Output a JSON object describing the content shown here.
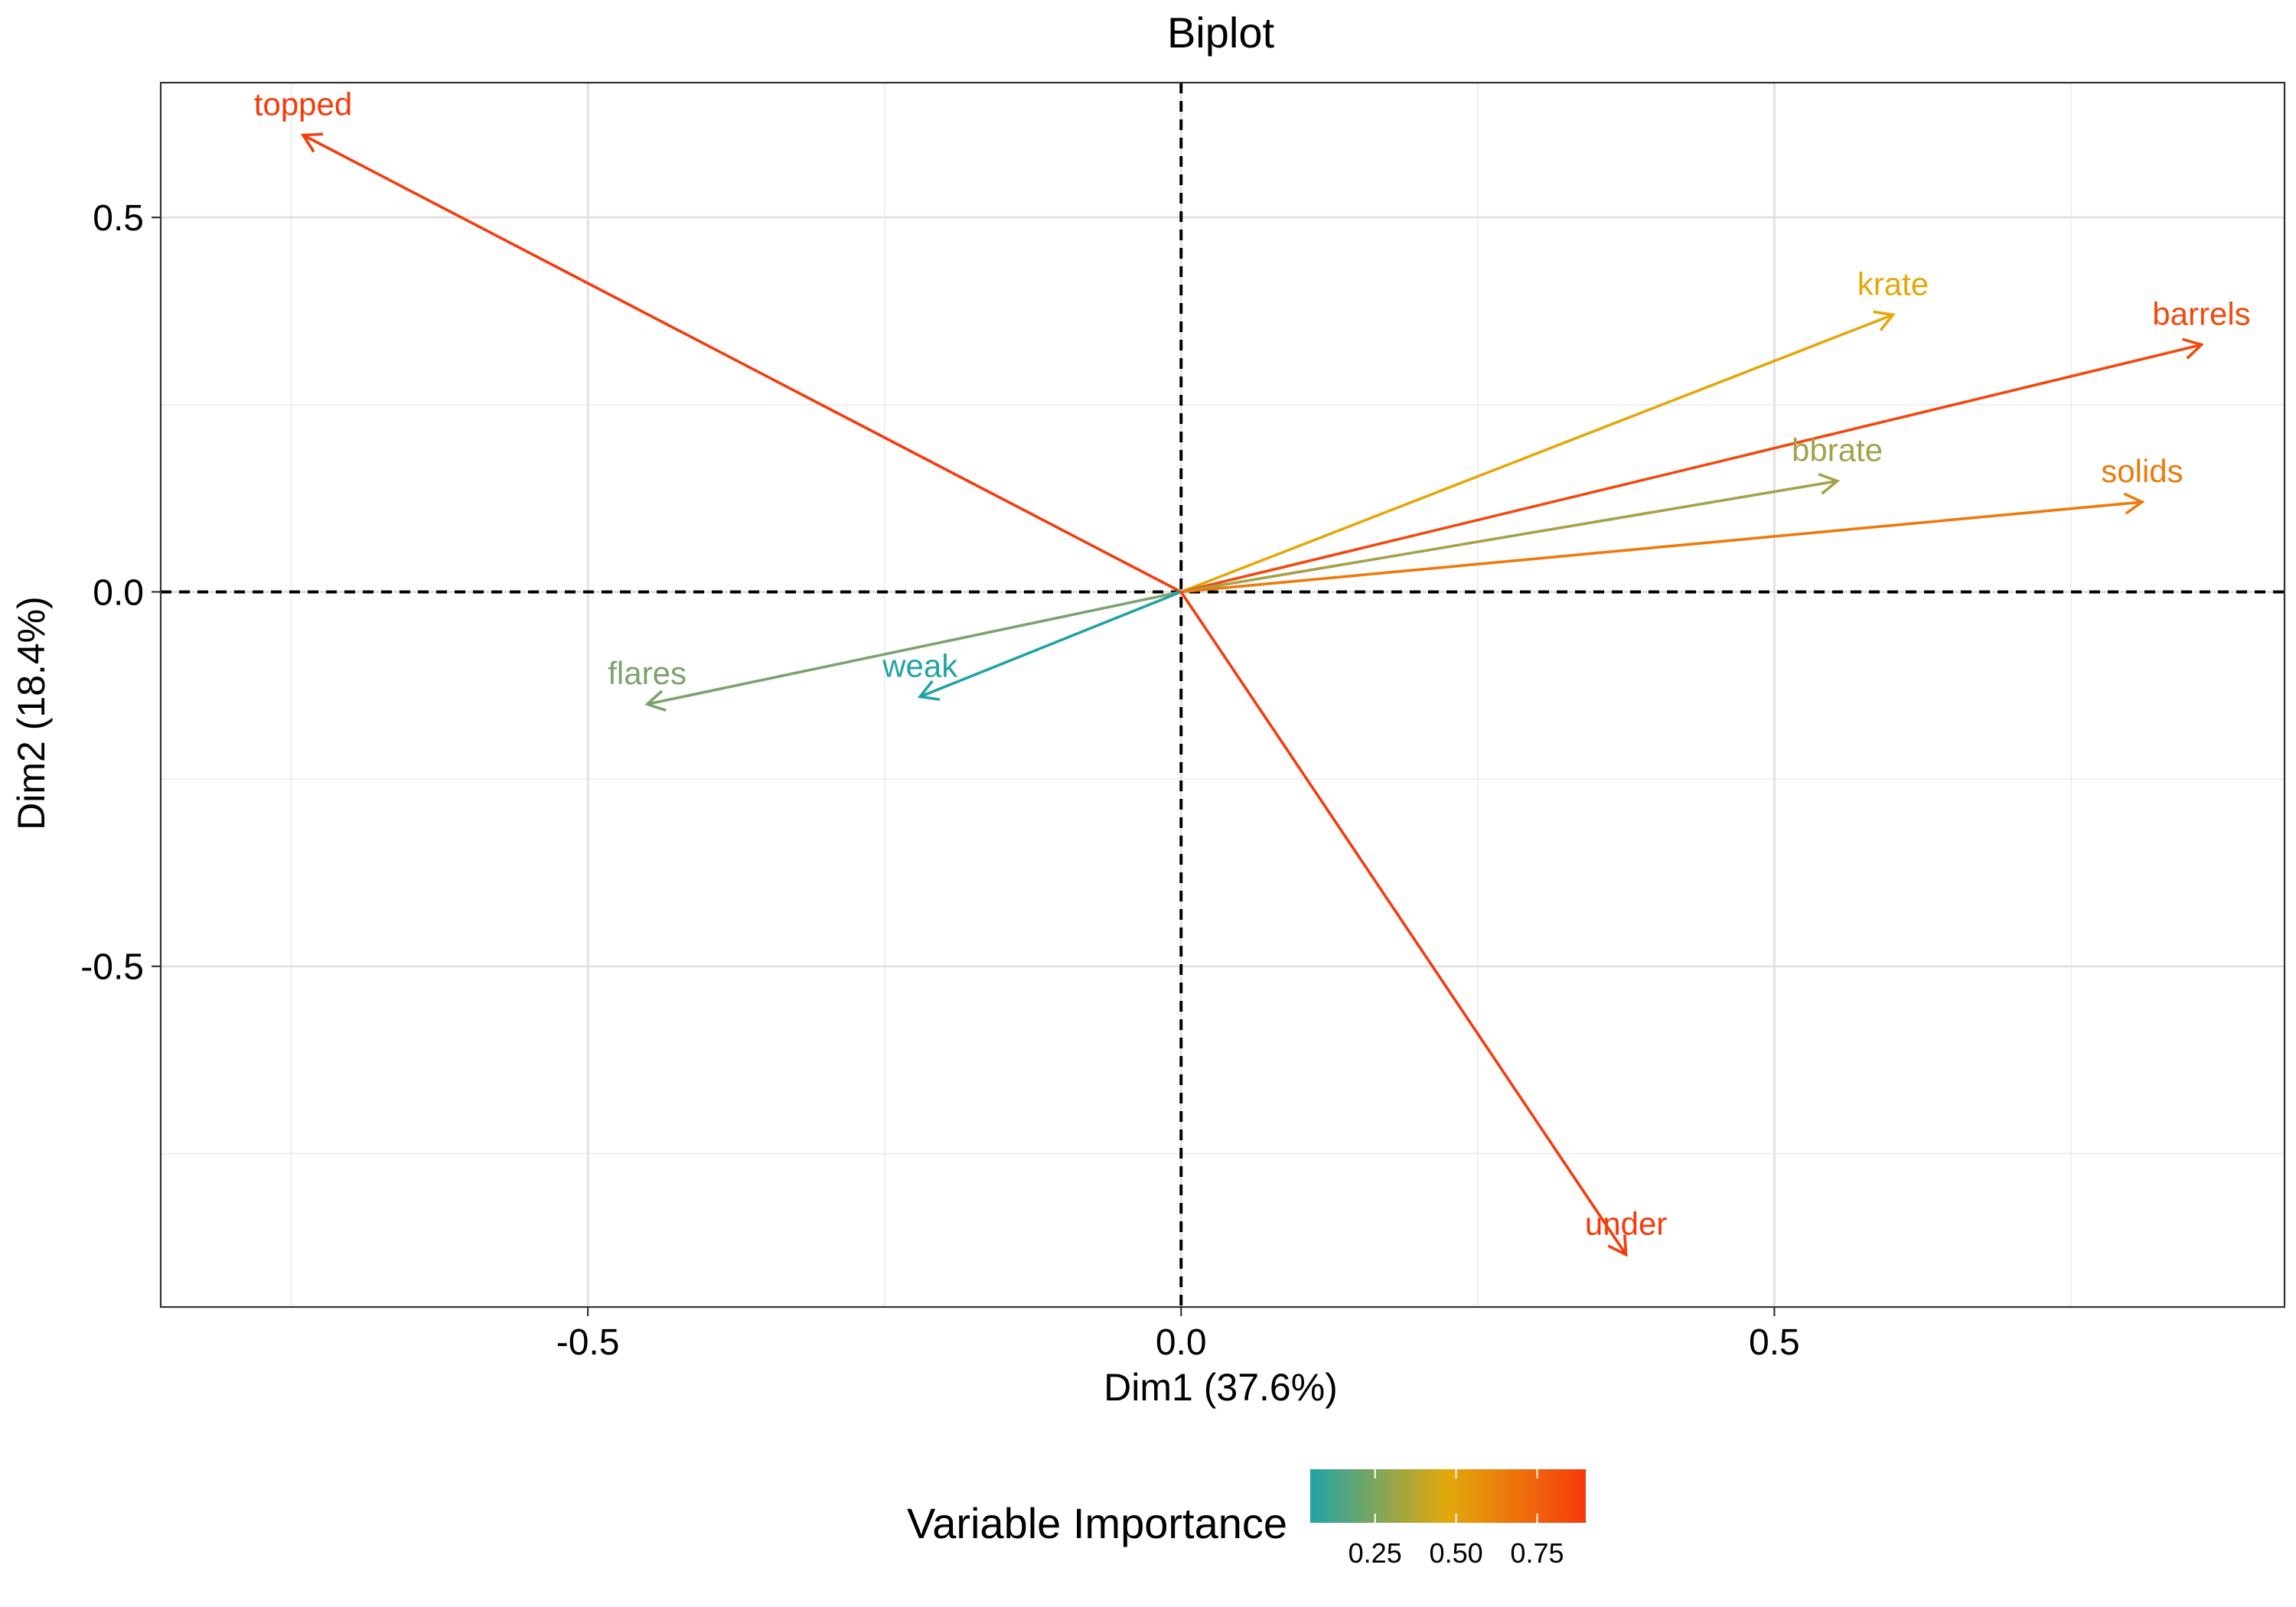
{
  "chart_data": {
    "type": "biplot",
    "title": "Biplot",
    "xlabel": "Dim1 (37.6%)",
    "ylabel": "Dim2 (18.4%)",
    "xlim": [
      -0.86,
      0.93
    ],
    "ylim": [
      -0.955,
      0.68
    ],
    "x_ticks": [
      -0.5,
      0.0,
      0.5
    ],
    "y_ticks": [
      0.5,
      0.0,
      -0.5
    ],
    "x_tick_labels": [
      "-0.5",
      "0.0",
      "0.5"
    ],
    "y_tick_labels": [
      "0.5",
      "0.0",
      "-0.5"
    ],
    "x_minor_grid": [
      -0.75,
      -0.25,
      0.25,
      0.75
    ],
    "y_minor_grid": [
      0.25,
      -0.25,
      -0.75
    ],
    "grid": true,
    "reference_lines": {
      "x": 0,
      "y": 0,
      "style": "dashed"
    },
    "variables": [
      {
        "name": "topped",
        "x": -0.74,
        "y": 0.61,
        "importance": 0.88,
        "color": "#F73A0C"
      },
      {
        "name": "krate",
        "x": 0.6,
        "y": 0.37,
        "importance": 0.5,
        "color": "#E3A80B"
      },
      {
        "name": "barrels",
        "x": 0.86,
        "y": 0.33,
        "importance": 0.85,
        "color": "#F2490D"
      },
      {
        "name": "bbrate",
        "x": 0.553,
        "y": 0.148,
        "importance": 0.32,
        "color": "#A4A24B"
      },
      {
        "name": "solids",
        "x": 0.81,
        "y": 0.12,
        "importance": 0.68,
        "color": "#EE7A0C"
      },
      {
        "name": "flares",
        "x": -0.45,
        "y": -0.15,
        "importance": 0.22,
        "color": "#7DA26F"
      },
      {
        "name": "weak",
        "x": -0.22,
        "y": -0.14,
        "importance": 0.1,
        "color": "#21A3A6"
      },
      {
        "name": "under",
        "x": 0.375,
        "y": -0.885,
        "importance": 0.9,
        "color": "#F73A0C"
      }
    ],
    "legend": {
      "title": "Variable Importance",
      "position": "bottom",
      "ticks": [
        0.25,
        0.5,
        0.75
      ],
      "tick_labels": [
        "0.25",
        "0.50",
        "0.75"
      ],
      "range": [
        0.05,
        0.9
      ],
      "gradient": [
        "#21A3A6",
        "#E3A80B",
        "#F73A0C"
      ]
    }
  }
}
